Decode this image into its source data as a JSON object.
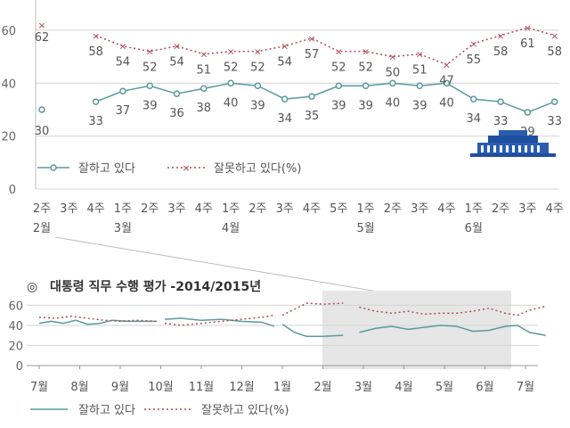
{
  "chart_data": [
    {
      "type": "line",
      "x": [
        "2주",
        "3주",
        "4주",
        "1주",
        "2주",
        "3주",
        "4주",
        "1주",
        "2주",
        "3주",
        "4주",
        "5주",
        "1주",
        "2주",
        "3주",
        "4주",
        "1주",
        "2주",
        "3주",
        "4주"
      ],
      "month_labels": [
        {
          "index": 0,
          "label": "2월"
        },
        {
          "index": 3,
          "label": "3월"
        },
        {
          "index": 7,
          "label": "4월"
        },
        {
          "index": 12,
          "label": "5월"
        },
        {
          "index": 16,
          "label": "6월"
        }
      ],
      "series": [
        {
          "name": "잘하고 있다",
          "color": "#5a9a9a",
          "style": "solid",
          "values": [
            30,
            null,
            33,
            37,
            39,
            36,
            38,
            40,
            39,
            34,
            35,
            39,
            39,
            40,
            39,
            40,
            34,
            33,
            29,
            33
          ]
        },
        {
          "name": "잘못하고 있다(%)",
          "color": "#b04a55",
          "style": "dotted",
          "values": [
            62,
            null,
            58,
            54,
            52,
            54,
            51,
            52,
            52,
            54,
            57,
            52,
            52,
            50,
            51,
            47,
            55,
            58,
            61,
            58
          ]
        }
      ],
      "yticks": [
        0,
        20,
        40,
        60
      ],
      "ylim": [
        0,
        64
      ],
      "grid": true,
      "legend": "bottom-left"
    },
    {
      "type": "line",
      "title": "대통령 직무 수행 평가 -2014/2015년",
      "title_marker": "◎",
      "xticks": [
        "7월",
        "8월",
        "9월",
        "10월",
        "11월",
        "12월",
        "1월",
        "2월",
        "3월",
        "4월",
        "5월",
        "6월",
        "7월"
      ],
      "yticks": [
        0,
        20,
        40,
        60
      ],
      "ylim": [
        0,
        65
      ],
      "grid": true,
      "legend": "bottom",
      "highlight_range": [
        "3월",
        "6월"
      ],
      "series": [
        {
          "name": "잘하고 있다",
          "color": "#5a9a9a",
          "style": "solid",
          "segments": [
            {
              "x": [
                0,
                0.3,
                0.6,
                0.9,
                1.2,
                1.5,
                1.8,
                2.2,
                2.6,
                2.9
              ],
              "y": [
                42,
                44,
                42,
                45,
                41,
                42,
                45,
                44,
                44,
                44
              ]
            },
            {
              "x": [
                3.1,
                3.5,
                4.0,
                4.5,
                5.0,
                5.5,
                5.8
              ],
              "y": [
                46,
                47,
                45,
                46,
                44,
                43,
                39
              ]
            },
            {
              "x": [
                6.0,
                6.3,
                6.6,
                7.0,
                7.5
              ],
              "y": [
                41,
                33,
                29,
                29,
                30
              ]
            },
            {
              "x": [
                7.9,
                8.3,
                8.7,
                9.1,
                9.5,
                9.9,
                10.3,
                10.7,
                11.1,
                11.5,
                11.8,
                12.1,
                12.5
              ],
              "y": [
                33,
                37,
                39,
                36,
                38,
                40,
                39,
                34,
                35,
                39,
                40,
                33,
                30
              ]
            }
          ]
        },
        {
          "name": "잘못하고 있다(%)",
          "color": "#b04a55",
          "style": "dotted",
          "segments": [
            {
              "x": [
                0,
                0.4,
                0.8,
                1.2,
                1.6,
                2.0,
                2.4,
                2.9
              ],
              "y": [
                48,
                47,
                49,
                47,
                45,
                44,
                45,
                44
              ]
            },
            {
              "x": [
                3.1,
                3.5,
                4.0,
                4.5,
                5.0,
                5.5,
                5.8
              ],
              "y": [
                42,
                40,
                42,
                44,
                46,
                48,
                50
              ]
            },
            {
              "x": [
                6.0,
                6.3,
                6.6,
                7.0,
                7.5
              ],
              "y": [
                50,
                56,
                62,
                61,
                62
              ]
            },
            {
              "x": [
                7.9,
                8.3,
                8.7,
                9.1,
                9.5,
                9.9,
                10.3,
                10.7,
                11.1,
                11.5,
                11.8,
                12.1,
                12.5
              ],
              "y": [
                58,
                54,
                52,
                54,
                51,
                52,
                52,
                54,
                57,
                52,
                50,
                55,
                59
              ]
            }
          ]
        }
      ]
    }
  ]
}
